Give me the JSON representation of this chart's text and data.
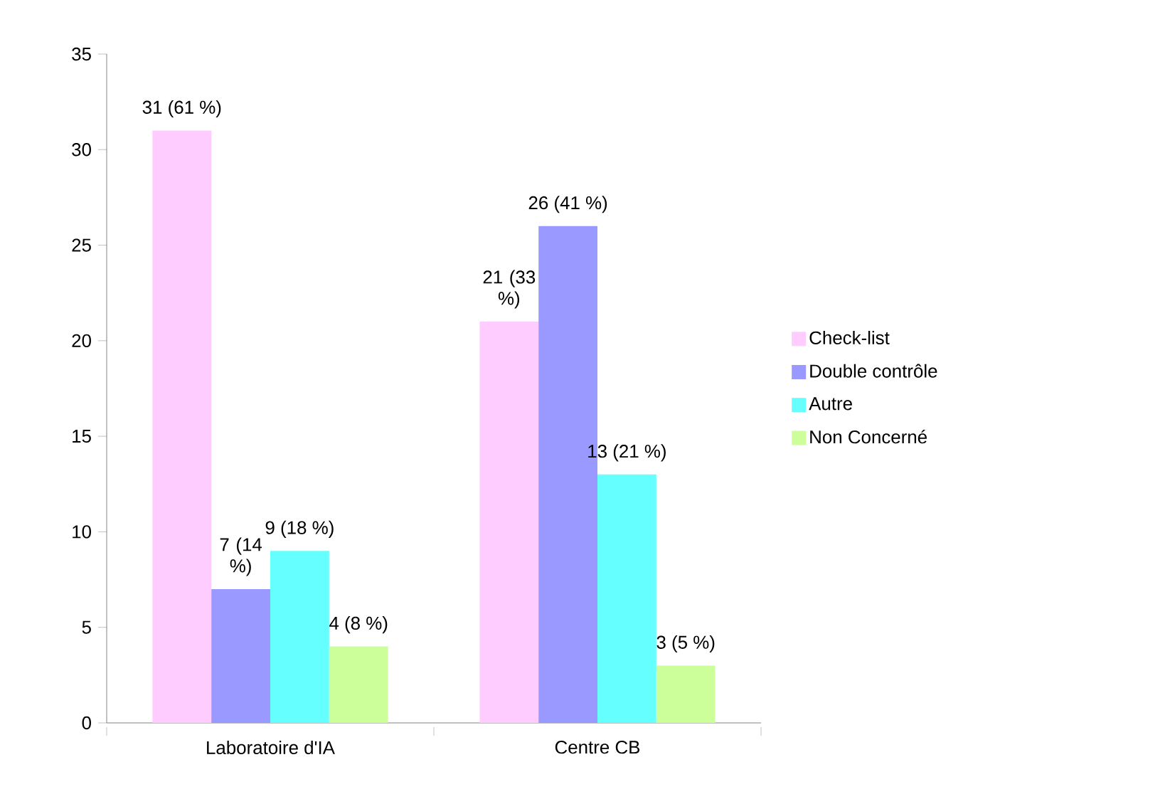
{
  "chart_data": {
    "type": "bar",
    "categories": [
      "Laboratoire d'IA",
      "Centre CB"
    ],
    "series": [
      {
        "name": "Check-list",
        "color": "#ffccff",
        "values": [
          31,
          21
        ],
        "value_labels": [
          "31 (61 %)",
          "21 (33 %)"
        ]
      },
      {
        "name": "Double contrôle",
        "color": "#9999ff",
        "values": [
          7,
          26
        ],
        "value_labels": [
          "7 (14 %)",
          "26 (41 %)"
        ]
      },
      {
        "name": "Autre",
        "color": "#66ffff",
        "values": [
          9,
          13
        ],
        "value_labels": [
          "9 (18 %)",
          "13 (21 %)"
        ]
      },
      {
        "name": "Non Concerné",
        "color": "#ccff99",
        "values": [
          4,
          3
        ],
        "value_labels": [
          "4 (8 %)",
          "3 (5 %)"
        ]
      }
    ],
    "ylim": [
      0,
      35
    ],
    "yticks": [
      0,
      5,
      10,
      15,
      20,
      25,
      30,
      35
    ],
    "legend": "right",
    "grid": false
  }
}
